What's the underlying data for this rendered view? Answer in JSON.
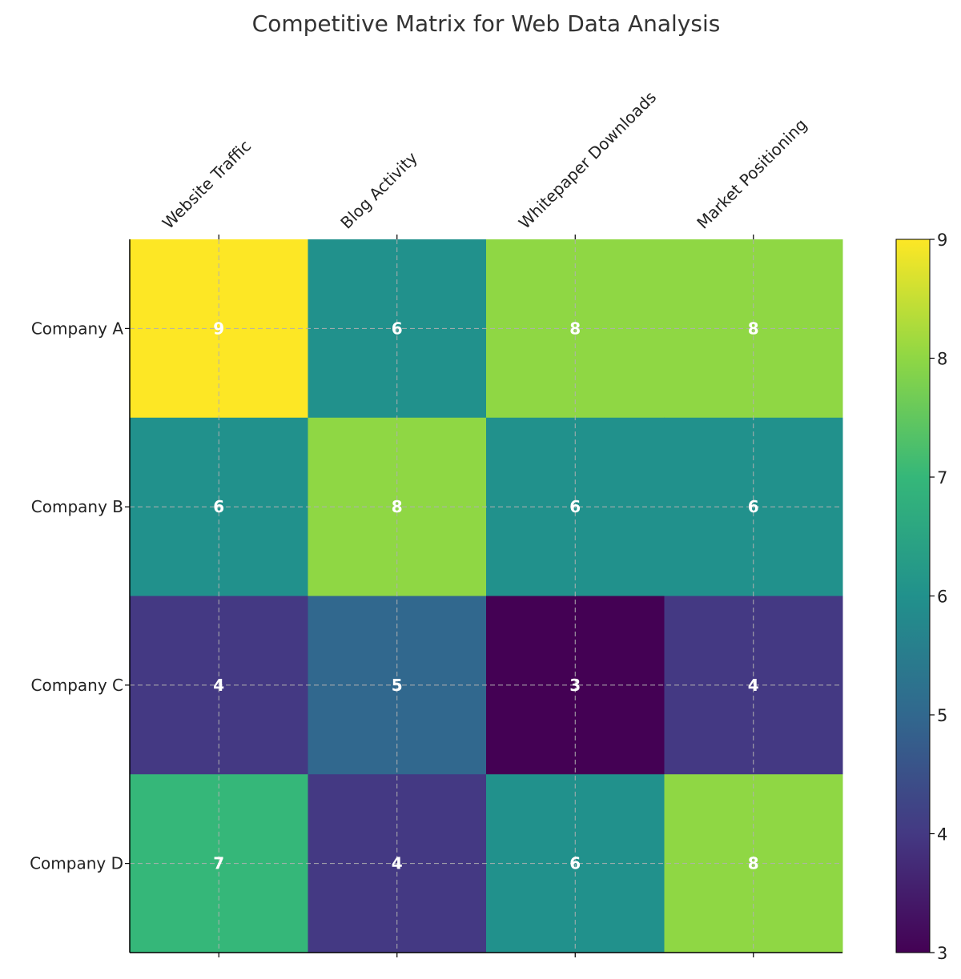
{
  "chart_data": {
    "type": "heatmap",
    "title": "Competitive Matrix for Web Data Analysis",
    "columns": [
      "Website Traffic",
      "Blog Activity",
      "Whitepaper Downloads",
      "Market Positioning"
    ],
    "rows": [
      "Company A",
      "Company B",
      "Company C",
      "Company D"
    ],
    "values": [
      [
        9,
        6,
        8,
        8
      ],
      [
        6,
        8,
        6,
        6
      ],
      [
        4,
        5,
        3,
        4
      ],
      [
        7,
        4,
        6,
        8
      ]
    ],
    "colormap": "viridis",
    "color_range": [
      3,
      9
    ],
    "colorbar_ticks": [
      3,
      4,
      5,
      6,
      7,
      8,
      9
    ],
    "colorbar_placement": "right",
    "x_tick_position": "top",
    "grid": true,
    "annotation_color": "#ffffff",
    "colors": {
      "3": "#440154",
      "4": "#443983",
      "5": "#31688e",
      "6": "#21918c",
      "7": "#35b779",
      "8": "#8fd744",
      "9": "#fde725"
    }
  }
}
